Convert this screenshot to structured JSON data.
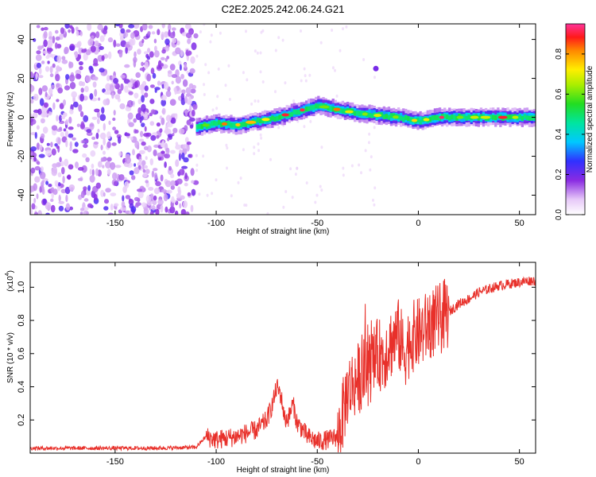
{
  "title": "C2E2.2025.242.06.24.G21",
  "colorbar": {
    "label": "Normalized spectral amplitude",
    "ticks": [
      "0.0",
      "0.2",
      "0.4",
      "0.6",
      "0.8"
    ],
    "tick_values": [
      0.0,
      0.2,
      0.4,
      0.6,
      0.8
    ],
    "range": [
      0,
      0.95
    ]
  },
  "chart_data": [
    {
      "type": "heatmap",
      "name": "spectrogram",
      "xlabel": "Height of straight line (km)",
      "ylabel": "Frequency (Hz)",
      "xlim": [
        -192,
        58
      ],
      "ylim": [
        -50,
        48
      ],
      "x_ticks": [
        -150,
        -100,
        -50,
        0,
        50
      ],
      "x_tick_labels": [
        "-150",
        "-100",
        "-50",
        "0",
        "50"
      ],
      "y_ticks": [
        -40,
        -20,
        0,
        20,
        40
      ],
      "y_tick_labels": [
        "-40",
        "-20",
        "0",
        "20",
        "40"
      ],
      "signal_track": {
        "x": [
          -110,
          -100,
          -90,
          -80,
          -70,
          -60,
          -50,
          -40,
          -30,
          -20,
          -10,
          0,
          10,
          20,
          30,
          40,
          50,
          58
        ],
        "y": [
          -5,
          -3,
          -4,
          -2,
          0,
          3,
          6,
          4,
          2,
          1,
          0,
          -2,
          0,
          0,
          0,
          0,
          0,
          0
        ]
      },
      "noise_region_x": [
        -192,
        -110
      ],
      "isolated_spot": {
        "x": -21,
        "y": 25
      }
    },
    {
      "type": "line",
      "name": "snr",
      "xlabel": "Height of straight line (km)",
      "ylabel": "SNR (10 * v/v)",
      "y_multiplier_label": "(x10",
      "y_multiplier_exp": "4",
      "xlim": [
        -192,
        58
      ],
      "ylim": [
        0,
        1.15
      ],
      "x_ticks": [
        -150,
        -100,
        -50,
        0,
        50
      ],
      "x_tick_labels": [
        "-150",
        "-100",
        "-50",
        "0",
        "50"
      ],
      "y_ticks": [
        0.2,
        0.4,
        0.6,
        0.8,
        1.0
      ],
      "y_tick_labels": [
        "0.2",
        "0.4",
        "0.6",
        "0.8",
        "1.0"
      ],
      "color": "#e8302a",
      "series": [
        {
          "x": [
            -192,
            -170,
            -150,
            -130,
            -110,
            -105,
            -100,
            -90,
            -80,
            -75,
            -72,
            -70,
            -68,
            -66,
            -64,
            -62,
            -60,
            -57,
            -55,
            -50,
            -45,
            -40,
            -37,
            -35,
            -32,
            -30,
            -27,
            -25,
            -22,
            -20,
            -17,
            -15,
            -12,
            -10,
            -7,
            -5,
            -3,
            0,
            3,
            5,
            10,
            15,
            20,
            25,
            30,
            35,
            40,
            45,
            50,
            55,
            58
          ],
          "y": [
            0.03,
            0.03,
            0.03,
            0.03,
            0.035,
            0.1,
            0.08,
            0.1,
            0.14,
            0.2,
            0.3,
            0.4,
            0.35,
            0.2,
            0.22,
            0.3,
            0.18,
            0.14,
            0.1,
            0.07,
            0.08,
            0.1,
            0.25,
            0.38,
            0.42,
            0.45,
            0.48,
            0.5,
            0.55,
            0.6,
            0.58,
            0.65,
            0.68,
            0.72,
            0.6,
            0.66,
            0.7,
            0.72,
            0.74,
            0.78,
            0.8,
            0.85,
            0.9,
            0.93,
            0.97,
            0.99,
            1.01,
            1.02,
            1.03,
            1.04,
            1.04
          ]
        }
      ]
    }
  ]
}
